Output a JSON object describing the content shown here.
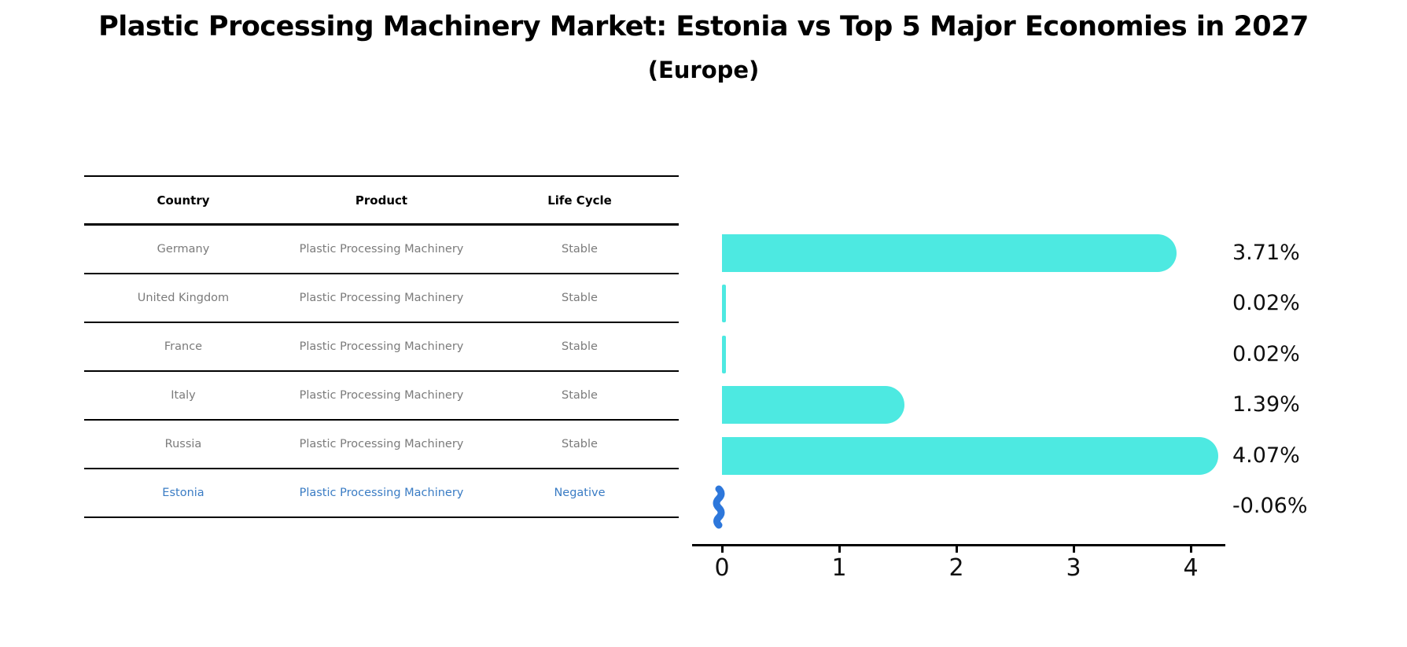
{
  "title": "Plastic Processing Machinery Market: Estonia vs Top 5 Major Economies in 2027",
  "subtitle": "(Europe)",
  "table": {
    "headers": {
      "country": "Country",
      "product": "Product",
      "life_cycle": "Life Cycle"
    },
    "rows": [
      {
        "country": "Germany",
        "product": "Plastic Processing Machinery",
        "life_cycle": "Stable",
        "highlighted": false
      },
      {
        "country": "United Kingdom",
        "product": "Plastic Processing Machinery",
        "life_cycle": "Stable",
        "highlighted": false
      },
      {
        "country": "France",
        "product": "Plastic Processing Machinery",
        "life_cycle": "Stable",
        "highlighted": false
      },
      {
        "country": "Italy",
        "product": "Plastic Processing Machinery",
        "life_cycle": "Stable",
        "highlighted": false
      },
      {
        "country": "Russia",
        "product": "Plastic Processing Machinery",
        "life_cycle": "Stable",
        "highlighted": false
      },
      {
        "country": "Estonia",
        "product": "Plastic Processing Machinery",
        "life_cycle": "Negative",
        "highlighted": true
      }
    ]
  },
  "chart_data": {
    "type": "bar",
    "orientation": "horizontal",
    "categories": [
      "Germany",
      "United Kingdom",
      "France",
      "Italy",
      "Russia",
      "Estonia"
    ],
    "values": [
      3.71,
      0.02,
      0.02,
      1.39,
      4.07,
      -0.06
    ],
    "value_labels": [
      "3.71%",
      "0.02%",
      "0.02%",
      "1.39%",
      "4.07%",
      "-0.06%"
    ],
    "xticks": [
      "0",
      "1",
      "2",
      "3",
      "4"
    ],
    "xlim": [
      -0.26,
      4.29
    ],
    "grid": false,
    "legend": false,
    "highlight_index": 5
  },
  "colors": {
    "bar": "#4de9e1",
    "highlight_bar": "#2d77db",
    "highlight_text": "#3a7cc4",
    "table_text": "#7b7b7b",
    "axis": "#000000",
    "background": "#ffffff"
  }
}
